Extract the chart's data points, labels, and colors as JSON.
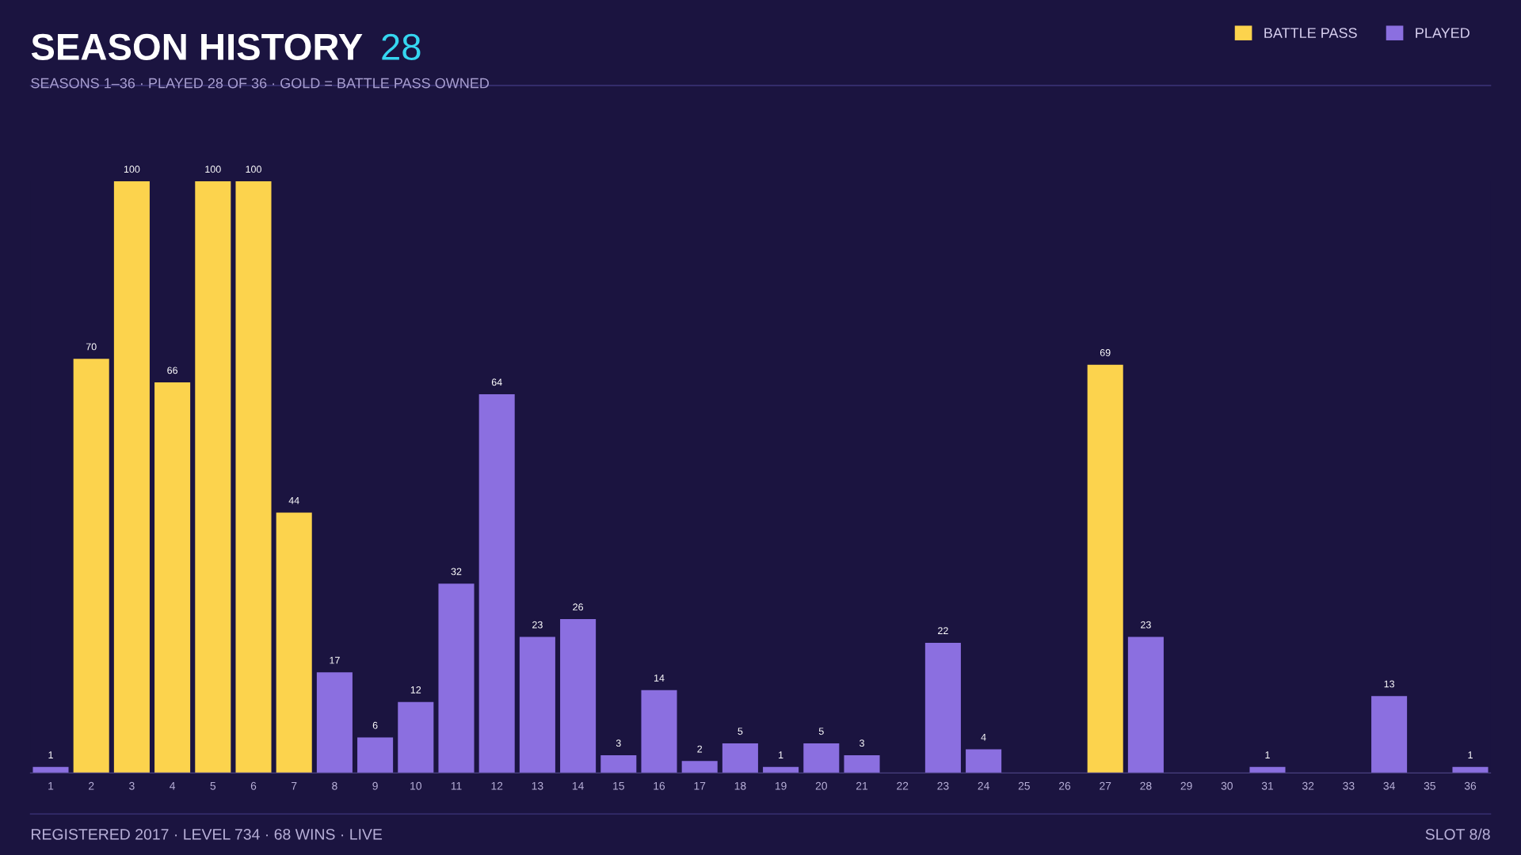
{
  "chart_data": {
    "type": "bar",
    "title": "SEASON HISTORY",
    "subtitle": "SEASONS 1–36 · PLAYED 28 OF 36 · GOLD = BATTLE PASS OWNED",
    "annotations": [
      "28",
      "REGISTERED 2017 · LEVEL 734 · 68 WINS · LIVE",
      "SLOT 8/8"
    ],
    "categories": [
      "1",
      "2",
      "3",
      "4",
      "5",
      "6",
      "7",
      "8",
      "9",
      "10",
      "11",
      "12",
      "13",
      "14",
      "15",
      "16",
      "17",
      "18",
      "19",
      "20",
      "21",
      "22",
      "23",
      "24",
      "25",
      "26",
      "27",
      "28",
      "29",
      "30",
      "31",
      "32",
      "33",
      "34",
      "35",
      "36"
    ],
    "series": [
      {
        "name": "BATTLE PASS",
        "color": "#fcd34d",
        "values": [
          null,
          70,
          100,
          66,
          100,
          100,
          44,
          null,
          null,
          null,
          null,
          null,
          null,
          null,
          null,
          null,
          null,
          null,
          null,
          null,
          null,
          null,
          null,
          null,
          null,
          null,
          69,
          null,
          null,
          null,
          null,
          null,
          null,
          null,
          null,
          null
        ]
      },
      {
        "name": "PLAYED",
        "color": "#8b6fe0",
        "values": [
          1,
          null,
          null,
          null,
          null,
          null,
          null,
          17,
          6,
          12,
          32,
          64,
          23,
          26,
          3,
          14,
          2,
          5,
          1,
          5,
          3,
          null,
          22,
          4,
          null,
          null,
          null,
          23,
          null,
          null,
          1,
          null,
          null,
          13,
          null,
          1
        ]
      }
    ],
    "ylim": [
      0,
      100
    ],
    "data_labels": true,
    "tick_labels": "x",
    "grid": false,
    "legend": "top right"
  }
}
